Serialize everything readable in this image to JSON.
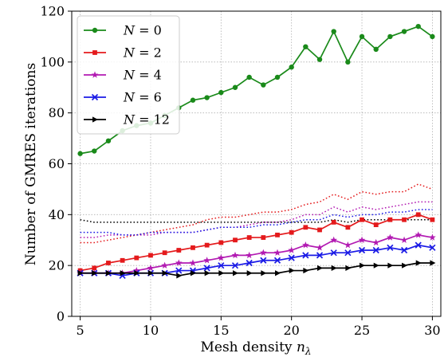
{
  "chart_data": {
    "type": "line",
    "xlabel": "Mesh density",
    "xlabel_symbol": "n",
    "xlabel_subscript": "λ",
    "ylabel": "Number of GMRES iterations",
    "xlim": [
      4.4,
      30.6
    ],
    "ylim": [
      0,
      120
    ],
    "xticks": [
      5,
      10,
      15,
      20,
      25,
      30
    ],
    "yticks": [
      0,
      20,
      40,
      60,
      80,
      100,
      120
    ],
    "grid": true,
    "grid_style": "dotted",
    "legend_position": "top-left",
    "x": [
      5,
      6,
      7,
      8,
      9,
      10,
      11,
      12,
      13,
      14,
      15,
      16,
      17,
      18,
      19,
      20,
      21,
      22,
      23,
      24,
      25,
      26,
      27,
      28,
      29,
      30
    ],
    "series": [
      {
        "name": "N = 0",
        "legend_symbol": "N",
        "legend_value": "0",
        "color": "#1a8a1a",
        "marker": "circle",
        "linestyle": "solid",
        "values": [
          64,
          65,
          69,
          73,
          75,
          76,
          79,
          82,
          85,
          86,
          88,
          90,
          94,
          91,
          94,
          98,
          106,
          101,
          112,
          100,
          110,
          105,
          110,
          112,
          114,
          110
        ]
      },
      {
        "name": "N = 2",
        "legend_symbol": "N",
        "legend_value": "2",
        "color": "#e41a1c",
        "marker": "square",
        "linestyle": "solid",
        "values": [
          18,
          19,
          21,
          22,
          23,
          24,
          25,
          26,
          27,
          28,
          29,
          30,
          31,
          31,
          32,
          33,
          35,
          34,
          37,
          35,
          38,
          36,
          38,
          38,
          40,
          38
        ]
      },
      {
        "name": "N = 4",
        "legend_symbol": "N",
        "legend_value": "4",
        "color": "#b21ab2",
        "marker": "star",
        "linestyle": "solid",
        "values": [
          17,
          17,
          17,
          17,
          18,
          19,
          20,
          21,
          21,
          22,
          23,
          24,
          24,
          25,
          25,
          26,
          28,
          27,
          30,
          28,
          30,
          29,
          31,
          30,
          32,
          31
        ]
      },
      {
        "name": "N = 6",
        "legend_symbol": "N",
        "legend_value": "6",
        "color": "#1a1ae6",
        "marker": "x",
        "linestyle": "solid",
        "values": [
          17,
          17,
          17,
          16,
          17,
          17,
          17,
          18,
          18,
          19,
          20,
          20,
          21,
          22,
          22,
          23,
          24,
          24,
          25,
          25,
          26,
          26,
          27,
          26,
          28,
          27
        ]
      },
      {
        "name": "N = 12",
        "legend_symbol": "N",
        "legend_value": "12",
        "color": "#000000",
        "marker": "triangle-right",
        "linestyle": "solid",
        "values": [
          17,
          17,
          17,
          17,
          17,
          17,
          17,
          16,
          17,
          17,
          17,
          17,
          17,
          17,
          17,
          18,
          18,
          19,
          19,
          19,
          20,
          20,
          20,
          20,
          21,
          21
        ]
      },
      {
        "color": "#e41a1c",
        "marker": "none",
        "linestyle": "dotted",
        "values": [
          29,
          29,
          30,
          31,
          32,
          33,
          34,
          35,
          36,
          38,
          39,
          39,
          40,
          41,
          41,
          42,
          44,
          45,
          48,
          46,
          49,
          48,
          49,
          49,
          52,
          50
        ]
      },
      {
        "color": "#b21ab2",
        "marker": "none",
        "linestyle": "dotted",
        "values": [
          31,
          31,
          32,
          32,
          32,
          32,
          33,
          33,
          33,
          34,
          35,
          35,
          36,
          37,
          37,
          38,
          40,
          40,
          43,
          41,
          43,
          42,
          43,
          44,
          45,
          45
        ]
      },
      {
        "color": "#1a1ae6",
        "marker": "none",
        "linestyle": "dotted",
        "values": [
          33,
          33,
          33,
          32,
          32,
          33,
          33,
          33,
          33,
          34,
          35,
          35,
          35,
          36,
          36,
          37,
          38,
          38,
          40,
          39,
          40,
          40,
          41,
          41,
          42,
          42
        ]
      },
      {
        "color": "#000000",
        "marker": "none",
        "linestyle": "dotted",
        "values": [
          38,
          37,
          37,
          37,
          37,
          37,
          37,
          37,
          37,
          37,
          37,
          37,
          37,
          37,
          37,
          37,
          37,
          37,
          38,
          37,
          38,
          38,
          38,
          38,
          38,
          38
        ]
      }
    ]
  }
}
